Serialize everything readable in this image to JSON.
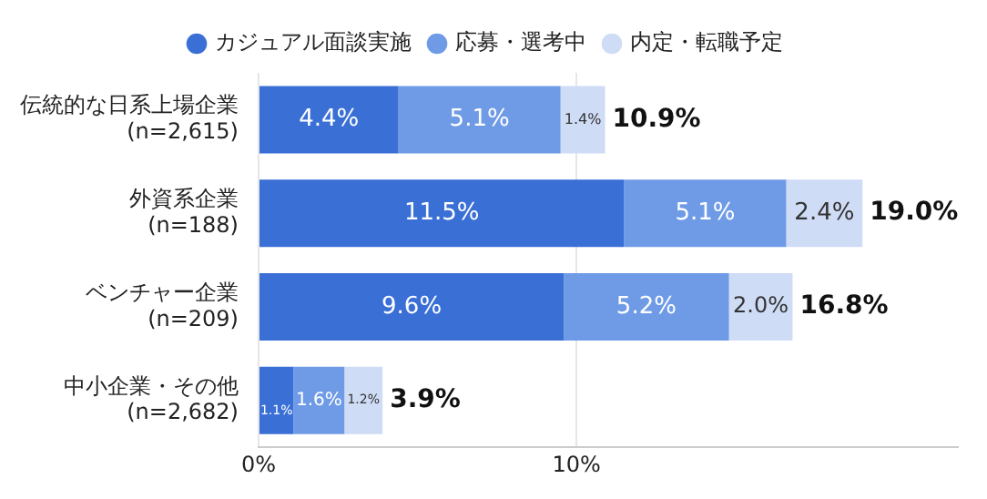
{
  "chart_data": {
    "type": "bar",
    "orientation": "horizontal",
    "stacked": true,
    "categories": [
      "伝統的な日系上場企業\n(n=2,615)",
      "外資系企業\n(n=188)",
      "ベンチャー企業\n(n=209)",
      "中小企業・その他\n(n=2,682)"
    ],
    "series": [
      {
        "name": "カジュアル面談実施",
        "color": "#3a6fd6",
        "values": [
          4.4,
          11.5,
          9.6,
          1.1
        ],
        "value_labels": [
          "4.4%",
          "11.5%",
          "9.6%",
          "1.1%"
        ]
      },
      {
        "name": "応募・選考中",
        "color": "#6f9be6",
        "values": [
          5.1,
          5.1,
          5.2,
          1.6
        ],
        "value_labels": [
          "5.1%",
          "5.1%",
          "5.2%",
          "1.6%"
        ]
      },
      {
        "name": "内定・転職予定",
        "color": "#cfdcf6",
        "values": [
          1.4,
          2.4,
          2.0,
          1.2
        ],
        "value_labels": [
          "1.4%",
          "2.4%",
          "2.0%",
          "1.2%"
        ]
      }
    ],
    "totals": [
      "10.9%",
      "19.0%",
      "16.8%",
      "3.9%"
    ],
    "xlim": [
      0,
      22
    ],
    "xticks": [
      {
        "value": 0,
        "label": "0%"
      },
      {
        "value": 10,
        "label": "10%"
      }
    ],
    "grid": "x",
    "legend": "top"
  }
}
